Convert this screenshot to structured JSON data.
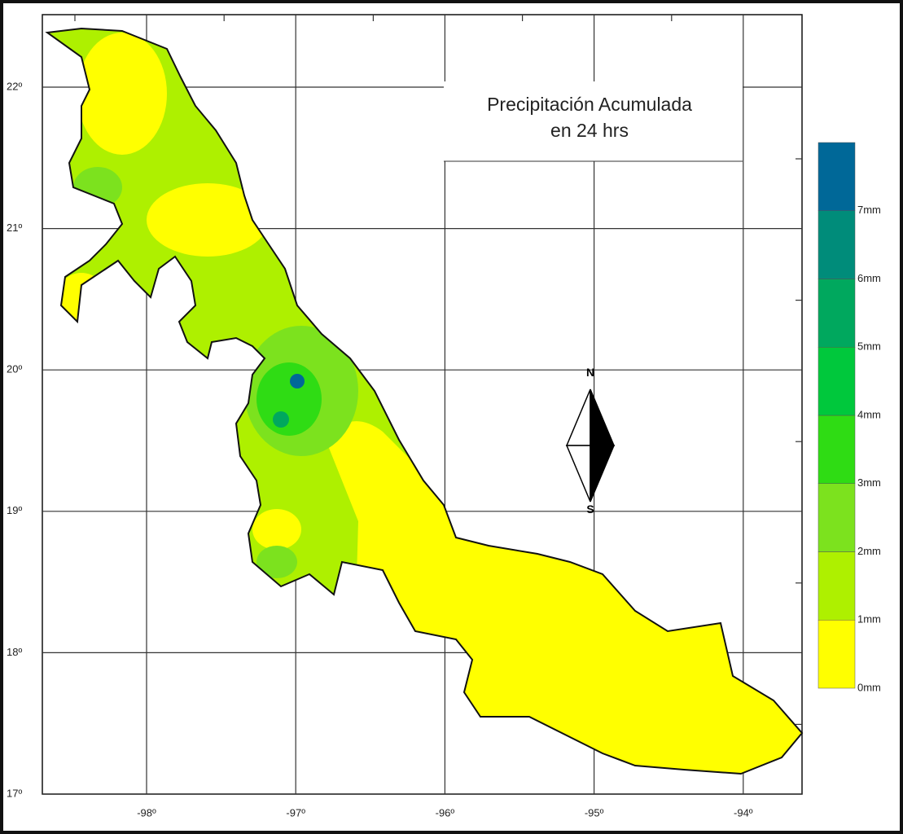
{
  "title": [
    "Precipitación Acumulada",
    "en 24 hrs"
  ],
  "longitude_labels": [
    "-98º",
    "-97º",
    "-96º",
    "-95º",
    "-94º"
  ],
  "latitude_labels": [
    "22º",
    "21º",
    "20º",
    "19º",
    "18º",
    "17º"
  ],
  "legend": {
    "labels": [
      "0mm",
      "1mm",
      "2mm",
      "3mm",
      "4mm",
      "5mm",
      "6mm",
      "7mm"
    ],
    "colors": [
      "#ffff00",
      "#aef000",
      "#7ce21e",
      "#2fdc14",
      "#00c83c",
      "#00a85e",
      "#008c7a",
      "#006898"
    ]
  },
  "compass": {
    "north": "N",
    "south": "S"
  }
}
